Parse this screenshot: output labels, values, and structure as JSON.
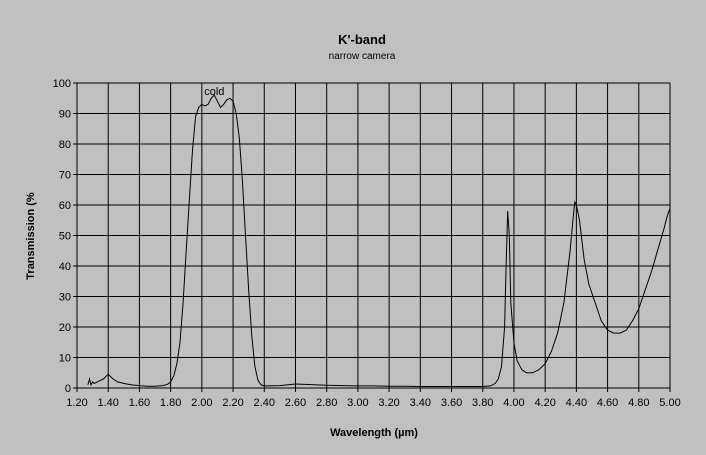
{
  "chart_data": {
    "type": "line",
    "title": "K'-band",
    "subtitle": "narrow camera",
    "xlabel": "Wavelength (µm)",
    "ylabel": "Transmission (%",
    "xlim": [
      1.2,
      5.0
    ],
    "ylim": [
      0,
      100
    ],
    "x_ticks": [
      "1.20",
      "1.40",
      "1.60",
      "1.80",
      "2.00",
      "2.20",
      "2.40",
      "2.60",
      "2.80",
      "3.00",
      "3.20",
      "3.40",
      "3.60",
      "3.80",
      "4.00",
      "4.20",
      "4.40",
      "4.60",
      "4.80",
      "5.00"
    ],
    "y_ticks": [
      "0",
      "10",
      "20",
      "30",
      "40",
      "50",
      "60",
      "70",
      "80",
      "90",
      "100"
    ],
    "grid": true,
    "annotations": [
      {
        "text": "cold",
        "x": 2.08,
        "y": 96
      }
    ],
    "series": [
      {
        "color": "#000000",
        "points": [
          [
            1.27,
            1
          ],
          [
            1.28,
            3
          ],
          [
            1.29,
            1
          ],
          [
            1.3,
            2
          ],
          [
            1.31,
            1.5
          ],
          [
            1.33,
            2
          ],
          [
            1.35,
            2.5
          ],
          [
            1.37,
            3
          ],
          [
            1.39,
            4
          ],
          [
            1.4,
            4.5
          ],
          [
            1.41,
            4
          ],
          [
            1.43,
            3
          ],
          [
            1.46,
            2
          ],
          [
            1.5,
            1.5
          ],
          [
            1.55,
            1
          ],
          [
            1.6,
            0.8
          ],
          [
            1.65,
            0.6
          ],
          [
            1.7,
            0.6
          ],
          [
            1.75,
            0.8
          ],
          [
            1.78,
            1.2
          ],
          [
            1.8,
            2
          ],
          [
            1.82,
            4
          ],
          [
            1.84,
            8
          ],
          [
            1.86,
            15
          ],
          [
            1.88,
            28
          ],
          [
            1.9,
            45
          ],
          [
            1.92,
            62
          ],
          [
            1.94,
            78
          ],
          [
            1.96,
            89
          ],
          [
            1.98,
            92
          ],
          [
            2.0,
            93
          ],
          [
            2.02,
            92.5
          ],
          [
            2.04,
            93
          ],
          [
            2.06,
            95
          ],
          [
            2.08,
            96
          ],
          [
            2.1,
            94
          ],
          [
            2.12,
            92
          ],
          [
            2.14,
            93
          ],
          [
            2.16,
            94.5
          ],
          [
            2.18,
            95
          ],
          [
            2.2,
            94
          ],
          [
            2.22,
            90
          ],
          [
            2.24,
            82
          ],
          [
            2.26,
            68
          ],
          [
            2.28,
            50
          ],
          [
            2.3,
            32
          ],
          [
            2.32,
            17
          ],
          [
            2.34,
            7
          ],
          [
            2.36,
            2.5
          ],
          [
            2.38,
            1
          ],
          [
            2.4,
            0.7
          ],
          [
            2.5,
            0.8
          ],
          [
            2.6,
            1.3
          ],
          [
            2.7,
            1.1
          ],
          [
            2.8,
            0.9
          ],
          [
            2.9,
            0.8
          ],
          [
            3.0,
            0.7
          ],
          [
            3.1,
            0.7
          ],
          [
            3.2,
            0.6
          ],
          [
            3.3,
            0.6
          ],
          [
            3.4,
            0.5
          ],
          [
            3.5,
            0.5
          ],
          [
            3.6,
            0.5
          ],
          [
            3.7,
            0.5
          ],
          [
            3.8,
            0.5
          ],
          [
            3.85,
            0.7
          ],
          [
            3.88,
            1.5
          ],
          [
            3.9,
            3
          ],
          [
            3.92,
            7
          ],
          [
            3.94,
            20
          ],
          [
            3.95,
            40
          ],
          [
            3.96,
            58
          ],
          [
            3.97,
            50
          ],
          [
            3.98,
            28
          ],
          [
            4.0,
            15
          ],
          [
            4.02,
            9
          ],
          [
            4.05,
            6
          ],
          [
            4.08,
            5
          ],
          [
            4.12,
            5
          ],
          [
            4.16,
            6
          ],
          [
            4.2,
            8
          ],
          [
            4.24,
            12
          ],
          [
            4.28,
            18
          ],
          [
            4.32,
            28
          ],
          [
            4.36,
            45
          ],
          [
            4.38,
            56
          ],
          [
            4.39,
            61
          ],
          [
            4.4,
            60
          ],
          [
            4.42,
            55
          ],
          [
            4.45,
            42
          ],
          [
            4.48,
            34
          ],
          [
            4.52,
            28
          ],
          [
            4.56,
            22
          ],
          [
            4.6,
            19
          ],
          [
            4.64,
            18
          ],
          [
            4.68,
            18
          ],
          [
            4.72,
            19
          ],
          [
            4.76,
            22
          ],
          [
            4.8,
            26
          ],
          [
            4.84,
            32
          ],
          [
            4.88,
            38
          ],
          [
            4.92,
            45
          ],
          [
            4.96,
            52
          ],
          [
            4.98,
            56
          ],
          [
            5.0,
            59
          ]
        ]
      }
    ]
  }
}
